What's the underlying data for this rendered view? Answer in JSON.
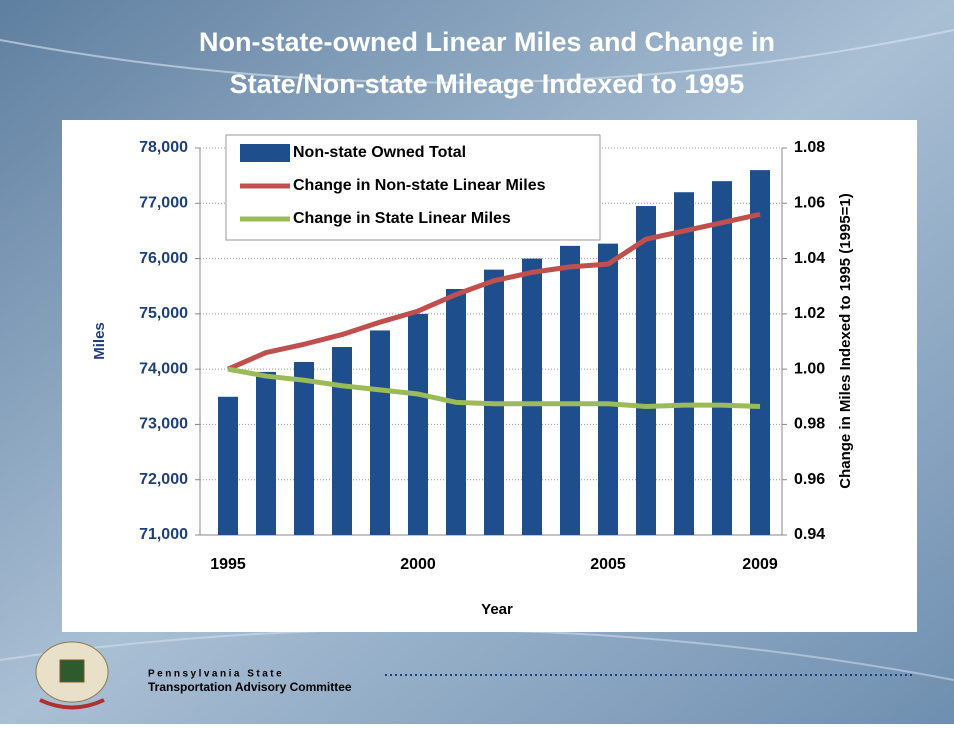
{
  "chart_data": {
    "type": "bar",
    "title": [
      "Non-state-owned Linear Miles and Change in",
      "State/Non-state Mileage Indexed to 1995"
    ],
    "categories": [
      "1995",
      null,
      null,
      null,
      null,
      "2000",
      null,
      null,
      null,
      null,
      "2005",
      null,
      null,
      null,
      "2009"
    ],
    "series": [
      {
        "name": "Non-state Owned Total",
        "type": "bar",
        "color": "#1f4e8c",
        "axis": "y",
        "values": [
          73500,
          73950,
          74130,
          74400,
          74700,
          75000,
          75450,
          75800,
          76000,
          76230,
          76270,
          76950,
          77200,
          77400,
          77600
        ]
      },
      {
        "name": "Change in Non-state Linear Miles",
        "type": "line",
        "color": "#c0504d",
        "axis": "y2",
        "values": [
          1.0,
          1.006,
          1.009,
          1.0125,
          1.017,
          1.021,
          1.027,
          1.032,
          1.035,
          1.037,
          1.038,
          1.047,
          1.05,
          1.053,
          1.056
        ]
      },
      {
        "name": "Change in State Linear Miles",
        "type": "line",
        "color": "#9bbb59",
        "axis": "y2",
        "values": [
          1.0,
          0.9975,
          0.996,
          0.994,
          0.9925,
          0.991,
          0.988,
          0.9875,
          0.9875,
          0.9875,
          0.9875,
          0.9865,
          0.987,
          0.987,
          0.9865
        ]
      }
    ],
    "xlabel": "Year",
    "ylabel": "Miles",
    "y2label": "Change in Miles Indexed to 1995 (1995=1)",
    "ylim": [
      71000,
      78000
    ],
    "yticks": [
      {
        "value": 71000,
        "label": "71,000"
      },
      {
        "value": 72000,
        "label": "72,000"
      },
      {
        "value": 73000,
        "label": "73,000"
      },
      {
        "value": 74000,
        "label": "74,000"
      },
      {
        "value": 75000,
        "label": "75,000"
      },
      {
        "value": 76000,
        "label": "76,000"
      },
      {
        "value": 77000,
        "label": "77,000"
      },
      {
        "value": 78000,
        "label": "78,000"
      }
    ],
    "y2lim": [
      0.94,
      1.08
    ],
    "y2ticks": [
      0.94,
      0.96,
      0.98,
      {
        "value": 1.0,
        "label": "1.00"
      },
      1.02,
      1.04,
      1.06,
      1.08
    ],
    "grid": true,
    "legend": "top-left"
  },
  "footer": {
    "org_line1": "Pennsylvania State",
    "org_line2": "Transportation Advisory Committee"
  }
}
